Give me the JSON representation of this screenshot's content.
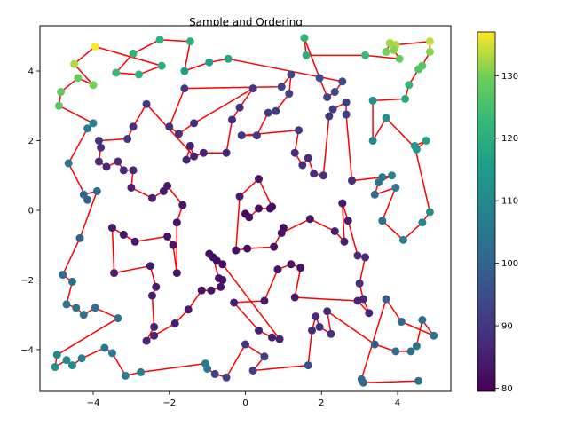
{
  "chart_data": {
    "type": "scatter",
    "title": "Sample and Ordering",
    "xlabel": "",
    "ylabel": "",
    "xlim": [
      -5.4,
      5.4
    ],
    "ylim": [
      -5.2,
      5.3
    ],
    "xticks": [
      -4,
      -2,
      0,
      2,
      4
    ],
    "xtick_labels": [
      "−4",
      "−2",
      "0",
      "2",
      "4"
    ],
    "yticks": [
      -4,
      -2,
      0,
      2,
      4
    ],
    "ytick_labels": [
      "−4",
      "−2",
      "0",
      "2",
      "4"
    ],
    "grid": false,
    "path_color": "#ff0000",
    "colorbar": {
      "colormap": "viridis",
      "range": [
        79.5,
        137
      ],
      "ticks": [
        80,
        90,
        100,
        110,
        120,
        130
      ],
      "tick_labels": [
        "80",
        "90",
        "100",
        "110",
        "120",
        "130"
      ]
    },
    "points": [
      [
        0.0,
        -0.1,
        80
      ],
      [
        0.1,
        -0.2,
        82
      ],
      [
        0.35,
        0.05,
        82
      ],
      [
        0.65,
        0.05,
        82
      ],
      [
        0.7,
        0.1,
        82
      ],
      [
        0.35,
        0.9,
        83
      ],
      [
        -0.15,
        0.4,
        85
      ],
      [
        -0.25,
        -1.15,
        82
      ],
      [
        0.05,
        -1.1,
        82
      ],
      [
        0.75,
        -1.05,
        82
      ],
      [
        1.0,
        -0.5,
        82
      ],
      [
        0.95,
        -0.65,
        83
      ],
      [
        1.7,
        -0.25,
        84
      ],
      [
        2.35,
        -0.6,
        85
      ],
      [
        2.6,
        -0.9,
        85
      ],
      [
        2.55,
        0.2,
        84
      ],
      [
        2.7,
        -0.3,
        85
      ],
      [
        2.95,
        -1.3,
        87
      ],
      [
        3.15,
        -1.35,
        87
      ],
      [
        3.0,
        -2.1,
        88
      ],
      [
        3.1,
        -2.55,
        87
      ],
      [
        3.25,
        -2.95,
        86
      ],
      [
        2.95,
        -2.6,
        86
      ],
      [
        1.3,
        -2.5,
        84
      ],
      [
        1.45,
        -1.65,
        83
      ],
      [
        1.2,
        -1.55,
        83
      ],
      [
        0.85,
        -1.7,
        83
      ],
      [
        0.5,
        -2.6,
        84
      ],
      [
        -0.3,
        -2.65,
        85
      ],
      [
        0.35,
        -3.45,
        85
      ],
      [
        0.7,
        -3.65,
        85
      ],
      [
        0.9,
        -3.7,
        86
      ],
      [
        -0.6,
        -1.55,
        82
      ],
      [
        -0.75,
        -1.45,
        82
      ],
      [
        -0.95,
        -1.25,
        82
      ],
      [
        -0.85,
        -1.35,
        82
      ],
      [
        -0.7,
        -1.95,
        83
      ],
      [
        -0.6,
        -2.0,
        83
      ],
      [
        -0.65,
        -2.2,
        83
      ],
      [
        -0.9,
        -2.3,
        83
      ],
      [
        -1.15,
        -2.3,
        83
      ],
      [
        -1.5,
        -2.85,
        84
      ],
      [
        -1.85,
        -3.25,
        85
      ],
      [
        -2.4,
        -3.6,
        86
      ],
      [
        -2.6,
        -3.75,
        86
      ],
      [
        -2.4,
        -3.35,
        86
      ],
      [
        -2.45,
        -2.45,
        85
      ],
      [
        -2.35,
        -2.2,
        85
      ],
      [
        -2.5,
        -1.6,
        84
      ],
      [
        -3.45,
        -1.8,
        85
      ],
      [
        -3.5,
        -0.5,
        84
      ],
      [
        -3.2,
        -0.7,
        84
      ],
      [
        -2.9,
        -0.9,
        84
      ],
      [
        -2.05,
        -0.75,
        83
      ],
      [
        -1.9,
        -1.0,
        83
      ],
      [
        -1.8,
        -1.8,
        83
      ],
      [
        -1.8,
        -0.35,
        83
      ],
      [
        -1.65,
        0.15,
        83
      ],
      [
        -2.05,
        0.7,
        84
      ],
      [
        -2.15,
        0.55,
        84
      ],
      [
        -2.45,
        0.35,
        85
      ],
      [
        -3.0,
        0.65,
        86
      ],
      [
        -2.95,
        1.15,
        87
      ],
      [
        -3.2,
        1.15,
        87
      ],
      [
        -3.35,
        1.4,
        87
      ],
      [
        -3.65,
        1.25,
        87
      ],
      [
        -3.85,
        1.4,
        88
      ],
      [
        -3.8,
        1.8,
        88
      ],
      [
        -3.85,
        2.0,
        89
      ],
      [
        -3.1,
        2.05,
        89
      ],
      [
        -2.95,
        2.4,
        89
      ],
      [
        -2.6,
        3.05,
        90
      ],
      [
        -1.35,
        1.55,
        86
      ],
      [
        -1.45,
        1.85,
        86
      ],
      [
        -1.55,
        1.45,
        86
      ],
      [
        -1.1,
        1.65,
        86
      ],
      [
        -0.5,
        1.65,
        85
      ],
      [
        -0.35,
        2.6,
        87
      ],
      [
        -0.15,
        2.95,
        88
      ],
      [
        0.2,
        3.5,
        90
      ],
      [
        -1.35,
        2.5,
        88
      ],
      [
        -1.75,
        2.2,
        88
      ],
      [
        -2.0,
        2.4,
        88
      ],
      [
        -1.6,
        3.5,
        91
      ],
      [
        0.95,
        3.55,
        92
      ],
      [
        1.2,
        3.9,
        93
      ],
      [
        1.15,
        3.35,
        92
      ],
      [
        0.8,
        2.85,
        91
      ],
      [
        0.6,
        2.8,
        91
      ],
      [
        0.3,
        2.15,
        90
      ],
      [
        -0.1,
        2.15,
        90
      ],
      [
        1.4,
        2.3,
        90
      ],
      [
        1.3,
        1.65,
        88
      ],
      [
        1.5,
        1.3,
        88
      ],
      [
        1.65,
        1.5,
        88
      ],
      [
        1.8,
        1.05,
        88
      ],
      [
        2.05,
        1.0,
        88
      ],
      [
        2.2,
        2.7,
        90
      ],
      [
        2.3,
        2.9,
        90
      ],
      [
        2.65,
        3.1,
        91
      ],
      [
        2.65,
        2.75,
        91
      ],
      [
        2.8,
        0.85,
        88
      ],
      [
        3.6,
        0.95,
        105
      ],
      [
        3.85,
        1.0,
        110
      ],
      [
        3.5,
        0.8,
        104
      ],
      [
        3.4,
        0.45,
        102
      ],
      [
        3.95,
        0.65,
        106
      ],
      [
        3.6,
        -0.3,
        103
      ],
      [
        4.15,
        -0.85,
        108
      ],
      [
        4.65,
        -0.35,
        110
      ],
      [
        4.85,
        -0.05,
        112
      ],
      [
        4.45,
        1.85,
        114
      ],
      [
        4.75,
        2.0,
        116
      ],
      [
        4.5,
        1.75,
        115
      ],
      [
        3.7,
        2.65,
        112
      ],
      [
        3.35,
        2.0,
        110
      ],
      [
        3.35,
        3.15,
        112
      ],
      [
        4.2,
        3.2,
        118
      ],
      [
        4.3,
        3.6,
        122
      ],
      [
        4.55,
        4.05,
        126
      ],
      [
        4.65,
        4.15,
        127
      ],
      [
        4.85,
        4.55,
        131
      ],
      [
        4.85,
        4.85,
        134
      ],
      [
        3.95,
        4.75,
        133
      ],
      [
        3.8,
        4.8,
        132
      ],
      [
        3.7,
        4.55,
        130
      ],
      [
        3.9,
        4.6,
        131
      ],
      [
        4.05,
        4.35,
        129
      ],
      [
        3.15,
        4.45,
        123
      ],
      [
        1.6,
        4.45,
        120
      ],
      [
        1.55,
        4.95,
        121
      ],
      [
        1.95,
        3.8,
        95
      ],
      [
        2.15,
        3.25,
        93
      ],
      [
        2.35,
        3.4,
        94
      ],
      [
        2.55,
        3.7,
        95
      ],
      [
        -0.45,
        4.35,
        118
      ],
      [
        -0.95,
        4.25,
        116
      ],
      [
        -1.6,
        4.0,
        115
      ],
      [
        -1.45,
        4.85,
        120
      ],
      [
        -2.25,
        4.9,
        121
      ],
      [
        -2.95,
        4.5,
        122
      ],
      [
        -3.4,
        3.95,
        123
      ],
      [
        -2.8,
        3.9,
        121
      ],
      [
        -2.2,
        4.15,
        120
      ],
      [
        -3.95,
        4.7,
        137
      ],
      [
        -4.5,
        4.2,
        133
      ],
      [
        -4.0,
        3.6,
        130
      ],
      [
        -4.4,
        3.8,
        129
      ],
      [
        -4.85,
        3.4,
        128
      ],
      [
        -4.9,
        3.0,
        127
      ],
      [
        -4.0,
        2.5,
        108
      ],
      [
        -4.15,
        2.35,
        107
      ],
      [
        -4.65,
        1.35,
        105
      ],
      [
        -4.15,
        0.3,
        100
      ],
      [
        -4.25,
        0.45,
        101
      ],
      [
        -3.9,
        0.55,
        102
      ],
      [
        -4.35,
        -0.8,
        100
      ],
      [
        -4.8,
        -1.85,
        102
      ],
      [
        -4.55,
        -2.05,
        103
      ],
      [
        -4.7,
        -2.7,
        104
      ],
      [
        -4.45,
        -2.8,
        104
      ],
      [
        -4.25,
        -3.0,
        104
      ],
      [
        -3.95,
        -2.8,
        103
      ],
      [
        -3.35,
        -3.1,
        104
      ],
      [
        -4.95,
        -4.15,
        110
      ],
      [
        -5.0,
        -4.5,
        112
      ],
      [
        -4.7,
        -4.3,
        110
      ],
      [
        -4.55,
        -4.45,
        110
      ],
      [
        -4.3,
        -4.25,
        108
      ],
      [
        -3.7,
        -3.95,
        106
      ],
      [
        -3.5,
        -4.1,
        106
      ],
      [
        -3.15,
        -4.75,
        107
      ],
      [
        -2.75,
        -4.65,
        107
      ],
      [
        -1.05,
        -4.4,
        106
      ],
      [
        -1.0,
        -4.55,
        105
      ],
      [
        -0.8,
        -4.7,
        92
      ],
      [
        -0.5,
        -4.8,
        92
      ],
      [
        0.0,
        -3.85,
        90
      ],
      [
        0.5,
        -4.2,
        91
      ],
      [
        0.2,
        -4.6,
        92
      ],
      [
        1.65,
        -4.45,
        95
      ],
      [
        1.75,
        -3.45,
        88
      ],
      [
        1.85,
        -3.05,
        88
      ],
      [
        1.95,
        -3.35,
        88
      ],
      [
        2.25,
        -3.55,
        89
      ],
      [
        2.15,
        -2.9,
        87
      ],
      [
        3.4,
        -3.85,
        100
      ],
      [
        3.95,
        -4.05,
        102
      ],
      [
        4.35,
        -4.05,
        103
      ],
      [
        4.5,
        -3.9,
        104
      ],
      [
        4.65,
        -3.15,
        103
      ],
      [
        4.95,
        -3.6,
        104
      ],
      [
        4.1,
        -3.2,
        101
      ],
      [
        3.7,
        -2.55,
        99
      ],
      [
        3.05,
        -4.85,
        102
      ],
      [
        3.1,
        -4.95,
        102
      ],
      [
        4.55,
        -4.9,
        104
      ]
    ]
  }
}
